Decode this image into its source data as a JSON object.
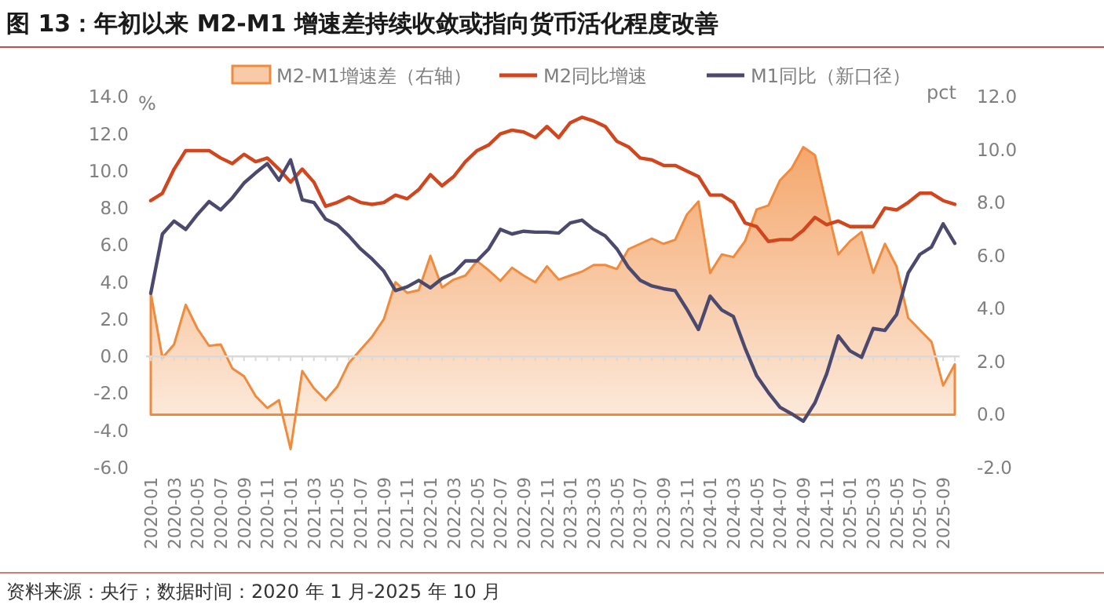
{
  "chart_data": {
    "type": "line",
    "title": "图 13：年初以来 M2-M1 增速差持续收敛或指向货币活化程度改善",
    "ylabel": "%",
    "y2label": "pct",
    "categories": [
      "2020-01",
      null,
      "2020-03",
      null,
      "2020-05",
      null,
      "2020-07",
      null,
      "2020-09",
      null,
      "2020-11",
      null,
      "2021-01",
      null,
      "2021-03",
      null,
      "2021-05",
      null,
      "2021-07",
      null,
      "2021-09",
      null,
      "2021-11",
      null,
      "2022-01",
      null,
      "2022-03",
      null,
      "2022-05",
      null,
      "2022-07",
      null,
      "2022-09",
      null,
      "2022-11",
      null,
      "2023-01",
      null,
      "2023-03",
      null,
      "2023-05",
      null,
      "2023-07",
      null,
      "2023-09",
      null,
      "2023-11",
      null,
      "2024-01",
      null,
      "2024-03",
      null,
      "2024-05",
      null,
      "2024-07",
      null,
      "2024-09",
      null,
      "2024-11",
      null,
      "2025-01",
      null,
      "2025-03",
      null,
      "2025-05",
      null,
      "2025-07",
      null,
      "2025-09",
      null
    ],
    "series": [
      {
        "name": "M2-M1增速差（右轴）",
        "type": "area",
        "axis": "y2",
        "color": "#f08a3c",
        "values": [
          4.6,
          2.15,
          2.65,
          4.15,
          3.25,
          2.6,
          2.65,
          1.75,
          1.45,
          0.7,
          0.25,
          0.55,
          -1.3,
          1.65,
          1.0,
          0.55,
          1.05,
          1.95,
          2.45,
          2.95,
          3.6,
          5.0,
          4.6,
          4.7,
          6.0,
          4.8,
          5.1,
          5.25,
          5.8,
          5.45,
          5.05,
          5.55,
          5.25,
          5.0,
          5.6,
          5.1,
          5.25,
          5.4,
          5.65,
          5.65,
          5.5,
          6.25,
          6.45,
          6.65,
          6.45,
          6.6,
          7.55,
          8.05,
          5.35,
          6.05,
          5.95,
          6.55,
          7.75,
          7.9,
          8.85,
          9.3,
          10.1,
          9.8,
          7.9,
          6.05,
          6.55,
          6.9,
          5.35,
          6.45,
          5.6,
          3.65,
          3.2,
          2.75,
          1.1,
          1.9
        ]
      },
      {
        "name": "M2同比增速",
        "color": "#d2461e",
        "values": [
          8.4,
          8.8,
          10.1,
          11.1,
          11.1,
          11.1,
          10.7,
          10.4,
          10.9,
          10.5,
          10.7,
          10.1,
          9.4,
          10.1,
          9.4,
          8.1,
          8.3,
          8.6,
          8.3,
          8.2,
          8.3,
          8.7,
          8.5,
          9.0,
          9.8,
          9.2,
          9.7,
          10.5,
          11.1,
          11.4,
          12.0,
          12.2,
          12.1,
          11.8,
          12.4,
          11.8,
          12.6,
          12.9,
          12.7,
          12.4,
          11.6,
          11.3,
          10.7,
          10.6,
          10.3,
          10.3,
          10.0,
          9.7,
          8.7,
          8.7,
          8.3,
          7.2,
          7.0,
          6.2,
          6.3,
          6.3,
          6.8,
          7.5,
          7.1,
          7.3,
          7.0,
          7.0,
          7.0,
          8.0,
          7.9,
          8.3,
          8.8,
          8.8,
          8.4,
          8.2
        ]
      },
      {
        "name": "M1同比（新口径）",
        "color": "#4b4a6e",
        "values": [
          3.4,
          6.6,
          7.3,
          6.85,
          7.65,
          8.35,
          7.9,
          8.55,
          9.35,
          9.9,
          10.4,
          9.5,
          10.6,
          8.45,
          8.3,
          7.4,
          7.1,
          6.5,
          5.8,
          5.25,
          4.6,
          3.55,
          3.75,
          4.1,
          3.7,
          4.2,
          4.5,
          5.15,
          5.15,
          5.8,
          6.85,
          6.6,
          6.75,
          6.7,
          6.7,
          6.65,
          7.2,
          7.35,
          6.85,
          6.5,
          5.8,
          4.8,
          4.1,
          3.8,
          3.65,
          3.55,
          2.55,
          1.45,
          3.25,
          2.5,
          2.15,
          0.45,
          -1.05,
          -1.95,
          -2.75,
          -3.1,
          -3.5,
          -2.5,
          -0.95,
          1.1,
          0.3,
          -0.05,
          1.5,
          1.4,
          2.25,
          4.5,
          5.5,
          5.9,
          7.15,
          6.1
        ]
      }
    ],
    "ylim": [
      -6,
      14
    ],
    "yticks": [
      {
        "value": -6,
        "label": "-6.0"
      },
      {
        "value": -4,
        "label": "-4.0"
      },
      {
        "value": -2,
        "label": "-2.0"
      },
      {
        "value": 0,
        "label": "0.0"
      },
      {
        "value": 2,
        "label": "2.0"
      },
      {
        "value": 4,
        "label": "4.0"
      },
      {
        "value": 6,
        "label": "6.0"
      },
      {
        "value": 8,
        "label": "8.0"
      },
      {
        "value": 10,
        "label": "10.0"
      },
      {
        "value": 12,
        "label": "12.0"
      },
      {
        "value": 14,
        "label": "14.0"
      }
    ],
    "y2lim": [
      -2,
      12
    ],
    "y2ticks": [
      {
        "value": -2,
        "label": "-2.0"
      },
      {
        "value": 0,
        "label": "0.0"
      },
      {
        "value": 2,
        "label": "2.0"
      },
      {
        "value": 4,
        "label": "4.0"
      },
      {
        "value": 6,
        "label": "6.0"
      },
      {
        "value": 8,
        "label": "8.0"
      },
      {
        "value": 10,
        "label": "10.0"
      },
      {
        "value": 12,
        "label": "12.0"
      }
    ],
    "legend": "top",
    "annotations": [
      "资料来源：央行；数据时间：2020 年 1 月-2025 年 10 月"
    ]
  }
}
